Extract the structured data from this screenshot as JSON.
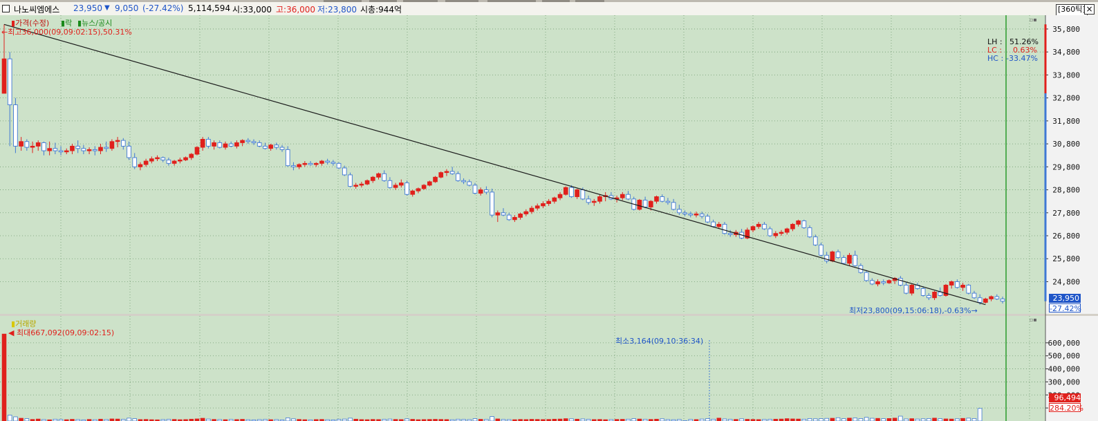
{
  "header": {
    "name": "나노씨엠에스",
    "price": "23,950",
    "arrow": "▼",
    "change": "9,050",
    "change_pct": "(-27.42%)",
    "volume": "5,114,594",
    "open": "시:33,000",
    "high": "고:36,000",
    "low": "저:23,800",
    "mktcap": "시총:944억",
    "tick_button": "[360틱]",
    "close_button": "×"
  },
  "legend": {
    "price_item": "가격(수정)",
    "price_item_2": "락",
    "news_item": "뉴스/공시",
    "volume_item": "거래량"
  },
  "annotations": {
    "max_price": "최고36,000(09,09:02:15),50.31%",
    "min_price": "최저23,800(09,15:06:18),-0.63%",
    "max_volume": "최대667,092(09,09:02:15)",
    "min_volume": "최소3,164(09,10:36:34)",
    "lh_label": "LH :",
    "lh_value": "51.26%",
    "lc_label": "LC :",
    "lc_value": "0.63%",
    "hc_label": "HC :",
    "hc_value": "-33.47%",
    "current_price": "23,950",
    "current_pct": "-27.42%",
    "current_volume": "96,494",
    "volume_ratio": "284.20%"
  },
  "colors": {
    "bg": "#cde2c9",
    "up": "#e0201c",
    "down": "#3f78d4",
    "grid": "#6f9a6f",
    "trend": "#1a1a1a",
    "current_line": "#2a9a2a"
  },
  "chart_data": {
    "type": "candlestick",
    "price_axis_ticks": [
      35800,
      34800,
      33800,
      32800,
      31800,
      30800,
      29800,
      28800,
      27800,
      26800,
      25800,
      24800
    ],
    "price_ylim": [
      23400,
      36400
    ],
    "volume_axis_ticks": [
      600000,
      500000,
      400000,
      300000,
      200000,
      100000
    ],
    "volume_ylim": [
      0,
      700000
    ],
    "max_price": 36000,
    "min_price": 23800,
    "max_volume": 667092,
    "min_volume": 3164,
    "last_close": 23950,
    "trendline": {
      "start_price": 36000,
      "end_price": 23800
    },
    "candles": [
      [
        33000,
        36000,
        33000,
        34500
      ],
      [
        34500,
        34800,
        30700,
        32500
      ],
      [
        32500,
        32800,
        30400,
        30700
      ],
      [
        30700,
        31100,
        30500,
        30900
      ],
      [
        30900,
        31000,
        30500,
        30650
      ],
      [
        30650,
        30900,
        30400,
        30700
      ],
      [
        30700,
        30950,
        30500,
        30850
      ],
      [
        30850,
        30900,
        30300,
        30500
      ],
      [
        30500,
        30900,
        30300,
        30600
      ],
      [
        30600,
        30850,
        30350,
        30500
      ],
      [
        30500,
        30700,
        30300,
        30450
      ],
      [
        30450,
        30600,
        30350,
        30500
      ],
      [
        30500,
        30800,
        30350,
        30700
      ],
      [
        30700,
        30950,
        30400,
        30600
      ],
      [
        30600,
        30750,
        30350,
        30500
      ],
      [
        30500,
        30650,
        30350,
        30550
      ],
      [
        30550,
        30700,
        30300,
        30500
      ],
      [
        30500,
        30800,
        30350,
        30650
      ],
      [
        30650,
        30900,
        30450,
        30600
      ],
      [
        30600,
        31000,
        30500,
        30900
      ],
      [
        30900,
        31100,
        30650,
        30950
      ],
      [
        30950,
        31050,
        30550,
        30700
      ],
      [
        30700,
        30900,
        30100,
        30200
      ],
      [
        30200,
        30400,
        29700,
        29800
      ],
      [
        29800,
        30000,
        29650,
        29900
      ],
      [
        29900,
        30150,
        29800,
        30050
      ],
      [
        30050,
        30250,
        29950,
        30150
      ],
      [
        30150,
        30300,
        30050,
        30200
      ],
      [
        30200,
        30250,
        30000,
        30100
      ],
      [
        30100,
        30200,
        29850,
        29950
      ],
      [
        29950,
        30100,
        29850,
        30050
      ],
      [
        30050,
        30200,
        29950,
        30100
      ],
      [
        30100,
        30250,
        30050,
        30200
      ],
      [
        30200,
        30400,
        30100,
        30350
      ],
      [
        30350,
        30700,
        30300,
        30650
      ],
      [
        30650,
        31100,
        30500,
        31000
      ],
      [
        31000,
        31100,
        30600,
        30700
      ],
      [
        30700,
        30950,
        30550,
        30850
      ],
      [
        30850,
        30950,
        30600,
        30650
      ],
      [
        30650,
        30900,
        30550,
        30800
      ],
      [
        30800,
        30900,
        30650,
        30700
      ],
      [
        30700,
        30950,
        30600,
        30850
      ],
      [
        30850,
        31000,
        30700,
        30950
      ],
      [
        30950,
        31050,
        30800,
        30900
      ],
      [
        30900,
        31000,
        30750,
        30850
      ],
      [
        30850,
        30950,
        30650,
        30700
      ],
      [
        30700,
        30850,
        30550,
        30600
      ],
      [
        30600,
        30800,
        30500,
        30750
      ],
      [
        30750,
        30850,
        30550,
        30650
      ],
      [
        30650,
        30750,
        30450,
        30550
      ],
      [
        30550,
        30700,
        29800,
        29850
      ],
      [
        29850,
        30000,
        29650,
        29800
      ],
      [
        29800,
        29950,
        29700,
        29900
      ],
      [
        29900,
        30050,
        29800,
        29950
      ],
      [
        29950,
        30050,
        29850,
        29900
      ],
      [
        29900,
        30000,
        29800,
        29950
      ],
      [
        29950,
        30100,
        29850,
        30050
      ],
      [
        30050,
        30150,
        29900,
        30000
      ],
      [
        30000,
        30100,
        29850,
        29950
      ],
      [
        29950,
        30000,
        29700,
        29750
      ],
      [
        29750,
        29850,
        29400,
        29450
      ],
      [
        29450,
        29550,
        28900,
        28950
      ],
      [
        28950,
        29100,
        28850,
        29000
      ],
      [
        29000,
        29150,
        28900,
        29050
      ],
      [
        29050,
        29250,
        29000,
        29200
      ],
      [
        29200,
        29400,
        29100,
        29350
      ],
      [
        29350,
        29550,
        29250,
        29500
      ],
      [
        29500,
        29650,
        29150,
        29200
      ],
      [
        29200,
        29350,
        28850,
        28900
      ],
      [
        28900,
        29100,
        28800,
        29000
      ],
      [
        29000,
        29250,
        28900,
        29100
      ],
      [
        29100,
        29200,
        28550,
        28600
      ],
      [
        28600,
        28800,
        28500,
        28750
      ],
      [
        28750,
        28900,
        28650,
        28850
      ],
      [
        28850,
        29050,
        28800,
        29000
      ],
      [
        29000,
        29200,
        28950,
        29150
      ],
      [
        29150,
        29400,
        29100,
        29350
      ],
      [
        29350,
        29600,
        29300,
        29550
      ],
      [
        29550,
        29700,
        29400,
        29600
      ],
      [
        29600,
        29800,
        29450,
        29500
      ],
      [
        29500,
        29600,
        29150,
        29200
      ],
      [
        29200,
        29300,
        29050,
        29150
      ],
      [
        29150,
        29250,
        28950,
        29000
      ],
      [
        29000,
        29100,
        28600,
        28650
      ],
      [
        28650,
        28900,
        28550,
        28800
      ],
      [
        28800,
        28950,
        28600,
        28700
      ],
      [
        28700,
        28850,
        27600,
        27700
      ],
      [
        27700,
        27900,
        27400,
        27800
      ],
      [
        27800,
        28000,
        27650,
        27700
      ],
      [
        27700,
        27800,
        27450,
        27500
      ],
      [
        27500,
        27700,
        27400,
        27600
      ],
      [
        27600,
        27800,
        27500,
        27750
      ],
      [
        27750,
        27950,
        27650,
        27850
      ],
      [
        27850,
        28100,
        27750,
        28000
      ],
      [
        28000,
        28200,
        27900,
        28100
      ],
      [
        28100,
        28300,
        28000,
        28200
      ],
      [
        28200,
        28400,
        28100,
        28300
      ],
      [
        28300,
        28500,
        28200,
        28450
      ],
      [
        28450,
        28700,
        28350,
        28600
      ],
      [
        28600,
        28950,
        28550,
        28900
      ],
      [
        28900,
        29000,
        28450,
        28500
      ],
      [
        28500,
        28850,
        28400,
        28800
      ],
      [
        28800,
        28900,
        28350,
        28400
      ],
      [
        28400,
        28550,
        28150,
        28250
      ],
      [
        28250,
        28400,
        28100,
        28300
      ],
      [
        28300,
        28600,
        28200,
        28500
      ],
      [
        28500,
        28700,
        28300,
        28550
      ],
      [
        28550,
        28700,
        28350,
        28400
      ],
      [
        28400,
        28550,
        28250,
        28450
      ],
      [
        28450,
        28700,
        28350,
        28600
      ],
      [
        28600,
        28750,
        28350,
        28400
      ],
      [
        28400,
        28500,
        27900,
        27950
      ],
      [
        27950,
        28400,
        27900,
        28350
      ],
      [
        28350,
        28500,
        28000,
        28050
      ],
      [
        28050,
        28350,
        27900,
        28300
      ],
      [
        28300,
        28550,
        28200,
        28500
      ],
      [
        28500,
        28600,
        28250,
        28300
      ],
      [
        28300,
        28450,
        28150,
        28250
      ],
      [
        28250,
        28400,
        27900,
        27950
      ],
      [
        27950,
        28150,
        27700,
        27800
      ],
      [
        27800,
        27900,
        27650,
        27750
      ],
      [
        27750,
        27850,
        27600,
        27700
      ],
      [
        27700,
        27850,
        27600,
        27750
      ],
      [
        27750,
        27850,
        27550,
        27650
      ],
      [
        27650,
        27750,
        27350,
        27400
      ],
      [
        27400,
        27500,
        27150,
        27200
      ],
      [
        27200,
        27400,
        27100,
        27300
      ],
      [
        27300,
        27400,
        26850,
        26900
      ],
      [
        26900,
        27050,
        26750,
        26850
      ],
      [
        26850,
        27050,
        26750,
        26950
      ],
      [
        26950,
        27100,
        26650,
        26700
      ],
      [
        26700,
        27150,
        26650,
        27050
      ],
      [
        27050,
        27250,
        26950,
        27200
      ],
      [
        27200,
        27400,
        27100,
        27300
      ],
      [
        27300,
        27400,
        27050,
        27100
      ],
      [
        27100,
        27200,
        26750,
        26800
      ],
      [
        26800,
        27000,
        26700,
        26900
      ],
      [
        26900,
        27050,
        26800,
        26950
      ],
      [
        26950,
        27150,
        26850,
        27100
      ],
      [
        27100,
        27350,
        27000,
        27300
      ],
      [
        27300,
        27500,
        27200,
        27450
      ],
      [
        27450,
        27500,
        27100,
        27150
      ],
      [
        27150,
        27250,
        26700,
        26750
      ],
      [
        26750,
        26850,
        26350,
        26400
      ],
      [
        26400,
        26500,
        25900,
        25950
      ],
      [
        25950,
        26100,
        25600,
        25700
      ],
      [
        25700,
        26150,
        25650,
        26100
      ],
      [
        26100,
        26200,
        25800,
        25850
      ],
      [
        25850,
        25950,
        25550,
        25600
      ],
      [
        25600,
        26050,
        25500,
        25950
      ],
      [
        25950,
        26150,
        25450,
        25500
      ],
      [
        25500,
        25600,
        25150,
        25200
      ],
      [
        25200,
        25300,
        24800,
        24850
      ],
      [
        24850,
        24950,
        24650,
        24700
      ],
      [
        24700,
        24900,
        24600,
        24800
      ],
      [
        24800,
        24900,
        24650,
        24750
      ],
      [
        24750,
        24900,
        24700,
        24850
      ],
      [
        24850,
        25000,
        24700,
        24950
      ],
      [
        24950,
        25050,
        24600,
        24650
      ],
      [
        24650,
        24800,
        24250,
        24300
      ],
      [
        24300,
        24700,
        24200,
        24650
      ],
      [
        24650,
        24750,
        24450,
        24500
      ],
      [
        24500,
        24600,
        24150,
        24200
      ],
      [
        24200,
        24300,
        24000,
        24100
      ],
      [
        24100,
        24400,
        24000,
        24350
      ],
      [
        24350,
        24550,
        24150,
        24200
      ],
      [
        24200,
        24700,
        24150,
        24650
      ],
      [
        24650,
        24850,
        24500,
        24800
      ],
      [
        24800,
        24900,
        24500,
        24550
      ],
      [
        24550,
        24750,
        24400,
        24650
      ],
      [
        24650,
        24700,
        24250,
        24300
      ],
      [
        24300,
        24400,
        24050,
        24100
      ],
      [
        24100,
        24250,
        23800,
        23900
      ],
      [
        23900,
        24100,
        23850,
        24050
      ],
      [
        24050,
        24200,
        23950,
        24150
      ],
      [
        24150,
        24250,
        24000,
        24050
      ],
      [
        24050,
        24150,
        23850,
        23950
      ]
    ],
    "volumes": [
      667092,
      45000,
      32000,
      21000,
      18000,
      12000,
      15000,
      11000,
      9000,
      14000,
      12000,
      10000,
      13000,
      11000,
      9000,
      12000,
      10000,
      14000,
      11000,
      16000,
      15000,
      13000,
      22000,
      18000,
      11000,
      12000,
      10000,
      9000,
      11000,
      13000,
      12000,
      10000,
      11000,
      14000,
      16000,
      21000,
      15000,
      12000,
      11000,
      10000,
      12000,
      11000,
      13000,
      10000,
      9000,
      11000,
      12000,
      10000,
      11000,
      9000,
      24000,
      17000,
      12000,
      10000,
      9000,
      11000,
      12000,
      10000,
      9000,
      13000,
      15000,
      22000,
      14000,
      11000,
      10000,
      12000,
      11000,
      13000,
      15000,
      12000,
      11000,
      17000,
      13000,
      10000,
      11000,
      12000,
      13000,
      12000,
      11000,
      10000,
      14000,
      12000,
      11000,
      18000,
      13000,
      12000,
      34000,
      16000,
      12000,
      11000,
      10000,
      12000,
      11000,
      13000,
      12000,
      11000,
      12000,
      14000,
      15000,
      18000,
      17000,
      14000,
      16000,
      13000,
      11000,
      12000,
      10000,
      11000,
      12000,
      13000,
      14000,
      18000,
      15000,
      13000,
      12000,
      14000,
      17000,
      11000,
      10000,
      12000,
      3164,
      12000,
      11000,
      15000,
      18000,
      14000,
      22000,
      16000,
      13000,
      12000,
      17000,
      13000,
      12000,
      11000,
      12000,
      13000,
      14000,
      15000,
      18000,
      16000,
      15000,
      14000,
      19000,
      17000,
      18000,
      20000,
      21000,
      25000,
      18000,
      22000,
      23000,
      19000,
      28000,
      21000,
      20000,
      18000,
      19000,
      22000,
      37000,
      16000,
      18000,
      15000,
      17000,
      19000,
      22000,
      18000,
      16000,
      15000,
      17000,
      20000,
      22000,
      19000,
      96494
    ]
  }
}
